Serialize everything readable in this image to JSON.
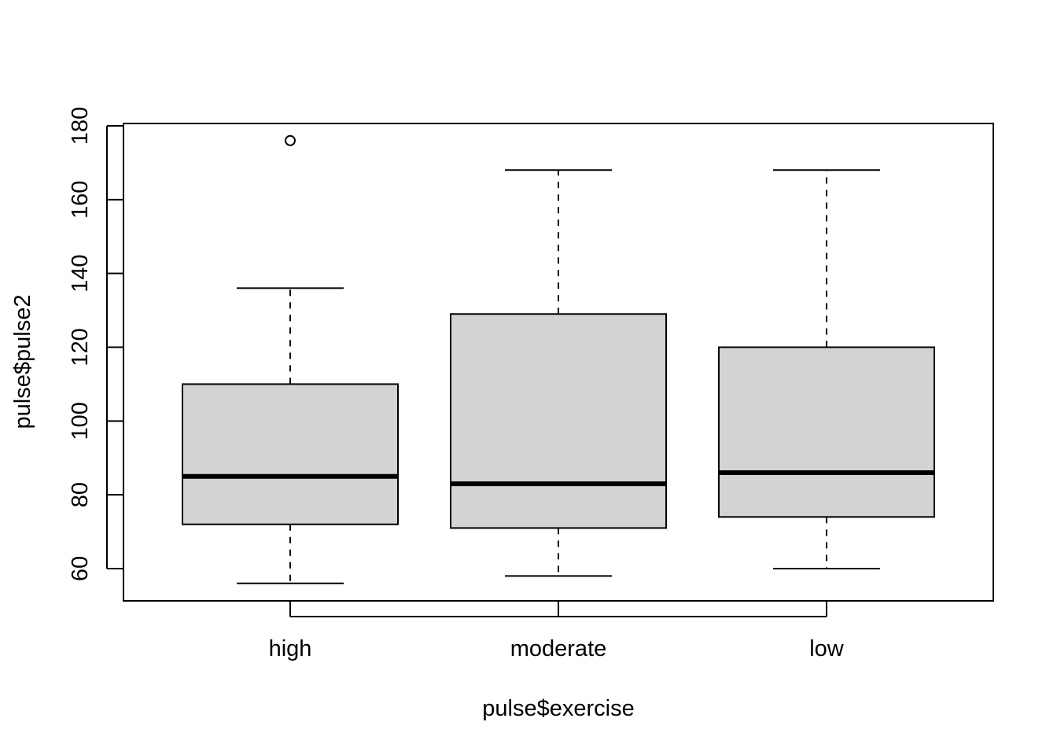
{
  "chart_data": {
    "type": "boxplot",
    "title": "",
    "xlabel": "pulse$exercise",
    "ylabel": "pulse$pulse2",
    "categories": [
      "high",
      "moderate",
      "low"
    ],
    "yticks": [
      "60",
      "80",
      "100",
      "120",
      "140",
      "160",
      "180"
    ],
    "ylim": [
      51,
      181
    ],
    "grid": false,
    "box_fill": "#d3d3d3",
    "line_color": "#000000",
    "boxes": [
      {
        "category": "high",
        "whisker_low": 56,
        "q1": 72,
        "median": 85,
        "q3": 110,
        "whisker_high": 136,
        "outliers": [
          176
        ]
      },
      {
        "category": "moderate",
        "whisker_low": 58,
        "q1": 71,
        "median": 83,
        "q3": 129,
        "whisker_high": 168,
        "outliers": []
      },
      {
        "category": "low",
        "whisker_low": 60,
        "q1": 74,
        "median": 86,
        "q3": 120,
        "whisker_high": 168,
        "outliers": []
      }
    ]
  }
}
